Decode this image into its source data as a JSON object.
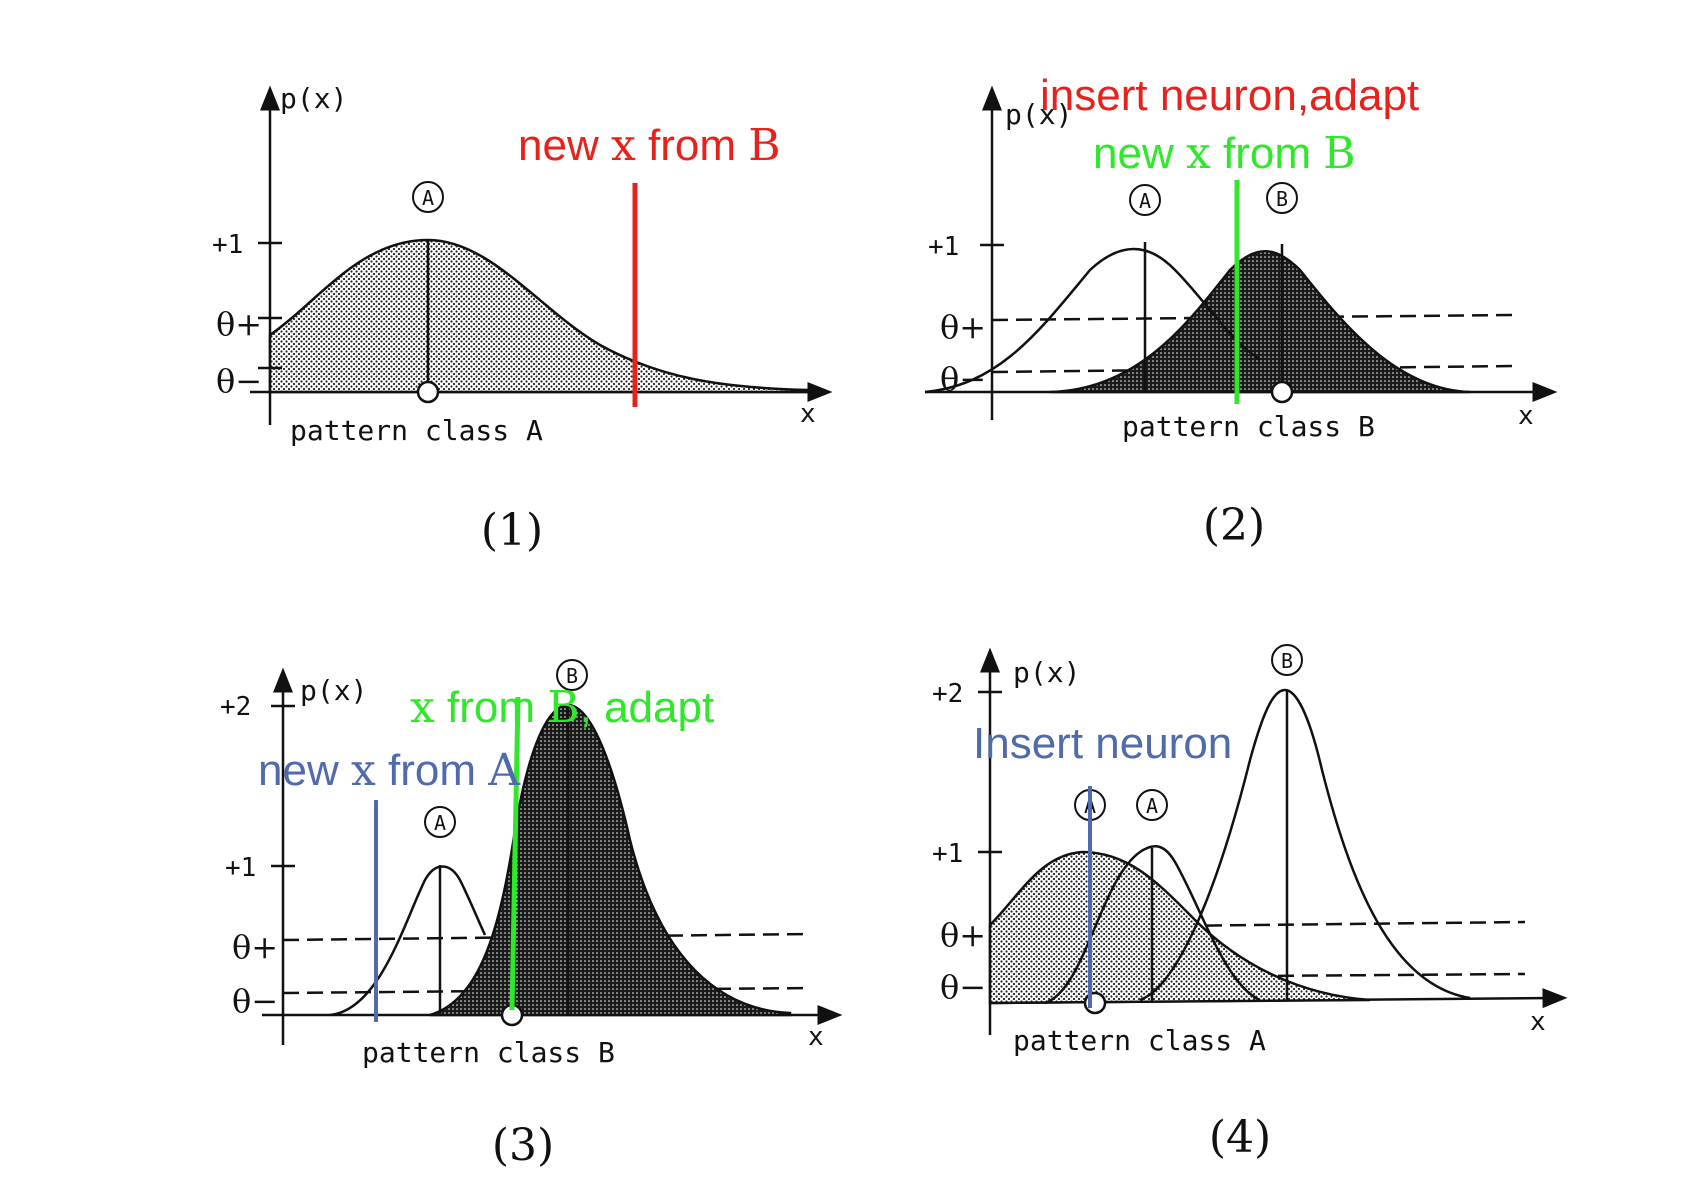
{
  "colors": {
    "red": "#e8221b",
    "green": "#2ee82a",
    "blue": "#4f6bab",
    "ink": "#111111"
  },
  "panels": [
    {
      "caption": "(1)",
      "axis": {
        "y": "p(x)",
        "x": "x",
        "ticks": [
          "+1",
          "θ+",
          "θ−"
        ]
      },
      "class_label": "pattern class A",
      "neurons": [
        "A"
      ],
      "annotations": [
        {
          "text": "new ",
          "sym": "x",
          "rest": " from ",
          "cls": "B",
          "color": "red"
        }
      ]
    },
    {
      "caption": "(2)",
      "axis": {
        "y": "p(x)",
        "x": "x",
        "ticks": [
          "+1",
          "θ+",
          "θ−"
        ]
      },
      "class_label": "pattern class B",
      "neurons": [
        "A",
        "B"
      ],
      "annotations": [
        {
          "text": "insert neuron,adapt",
          "color": "red"
        },
        {
          "text": "new ",
          "sym": "x",
          "rest": " from ",
          "cls": "B",
          "color": "green"
        }
      ]
    },
    {
      "caption": "(3)",
      "axis": {
        "y": "p(x)",
        "x": "x",
        "ticks": [
          "+2",
          "+1",
          "θ+",
          "θ−"
        ]
      },
      "class_label": "pattern class B",
      "neurons": [
        "A",
        "B"
      ],
      "annotations": [
        {
          "sym": "x",
          "rest": " from ",
          "cls": "B",
          "tail": ", adapt",
          "color": "green"
        },
        {
          "text": "new ",
          "sym": "x",
          "rest": " from ",
          "cls": "A",
          "color": "blue"
        }
      ]
    },
    {
      "caption": "(4)",
      "axis": {
        "y": "p(x)",
        "x": "x",
        "ticks": [
          "+2",
          "+1",
          "θ+",
          "θ−"
        ]
      },
      "class_label": "pattern class A",
      "neurons": [
        "A",
        "A",
        "B"
      ],
      "annotations": [
        {
          "text": "Insert neuron",
          "color": "blue"
        }
      ]
    }
  ]
}
